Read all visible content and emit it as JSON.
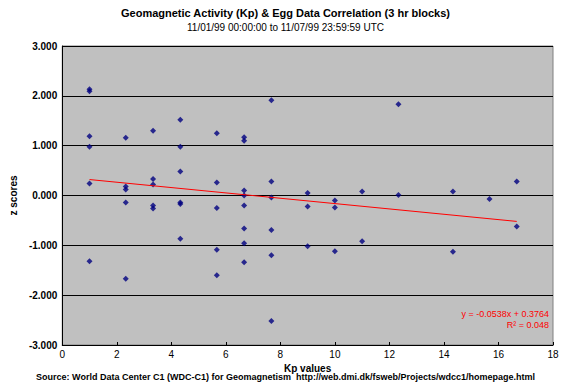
{
  "chart_data": {
    "type": "scatter",
    "title": "Geomagnetic Activity (Kp) & Egg Data Correlation (3 hr blocks)",
    "subtitle": "11/01/99 00:00:00 to 11/07/99 23:59:59 UTC",
    "x_label": "Kp values",
    "y_label": "z scores",
    "annotations": [
      "y = -0.0538x + 0.3764",
      "R² = 0.048"
    ],
    "source": "Source: World Data Center C1 (WDC-C1) for Geomagnetism  http://web.dmi.dk/fsweb/Projects/wdcc1/homepage.html",
    "xlim": [
      0,
      18
    ],
    "xticks": [
      0,
      2,
      4,
      6,
      8,
      10,
      12,
      14,
      16,
      18
    ],
    "ylim": [
      -3,
      3
    ],
    "yticks": [
      {
        "value": -3,
        "label": "-3.000"
      },
      {
        "value": -2,
        "label": "-2.000"
      },
      {
        "value": -1,
        "label": "-1.000"
      },
      {
        "value": 0,
        "label": "0.000"
      },
      {
        "value": 1,
        "label": "1.000"
      },
      {
        "value": 2,
        "label": "2.000"
      },
      {
        "value": 3,
        "label": "3.000"
      }
    ],
    "grid": true,
    "series": [
      {
        "type": "scatter",
        "color": "#000080",
        "marker": "diamond",
        "x": [
          1,
          1,
          1,
          1,
          1,
          1,
          2.33,
          2.33,
          2.33,
          2.33,
          2.33,
          3.33,
          3.33,
          3.33,
          3.33,
          3.33,
          4.33,
          4.33,
          4.33,
          4.33,
          4.33,
          4.33,
          5.67,
          5.67,
          5.67,
          5.67,
          5.67,
          6.67,
          6.67,
          6.67,
          6.67,
          6.67,
          6.67,
          6.67,
          6.67,
          7.67,
          7.67,
          7.67,
          7.67,
          7.67,
          7.67,
          9,
          9,
          9,
          10,
          10,
          10,
          11,
          11,
          12.33,
          12.33,
          14.33,
          14.33,
          15.67,
          16.67,
          16.67
        ],
        "values": [
          2.13,
          2.09,
          1.19,
          0.98,
          0.24,
          -1.32,
          1.16,
          0.18,
          0.12,
          -0.14,
          -1.67,
          1.3,
          0.33,
          0.22,
          -0.2,
          -0.26,
          1.52,
          0.98,
          0.48,
          -0.14,
          -0.17,
          -0.87,
          1.25,
          0.26,
          -0.25,
          -1.09,
          -1.6,
          1.17,
          1.1,
          0.1,
          0.0,
          -0.2,
          -0.66,
          -0.96,
          -1.34,
          1.91,
          0.28,
          -0.04,
          -0.69,
          -1.2,
          -2.52,
          0.05,
          -0.22,
          -1.02,
          -0.1,
          -0.24,
          -1.12,
          0.08,
          -0.92,
          1.83,
          0.01,
          0.08,
          -1.13,
          -0.07,
          0.28,
          -0.62
        ]
      },
      {
        "type": "line",
        "color": "#ff0000",
        "line_style": "solid",
        "x": [
          1,
          16.67
        ],
        "values": [
          0.32,
          -0.52
        ]
      }
    ]
  }
}
